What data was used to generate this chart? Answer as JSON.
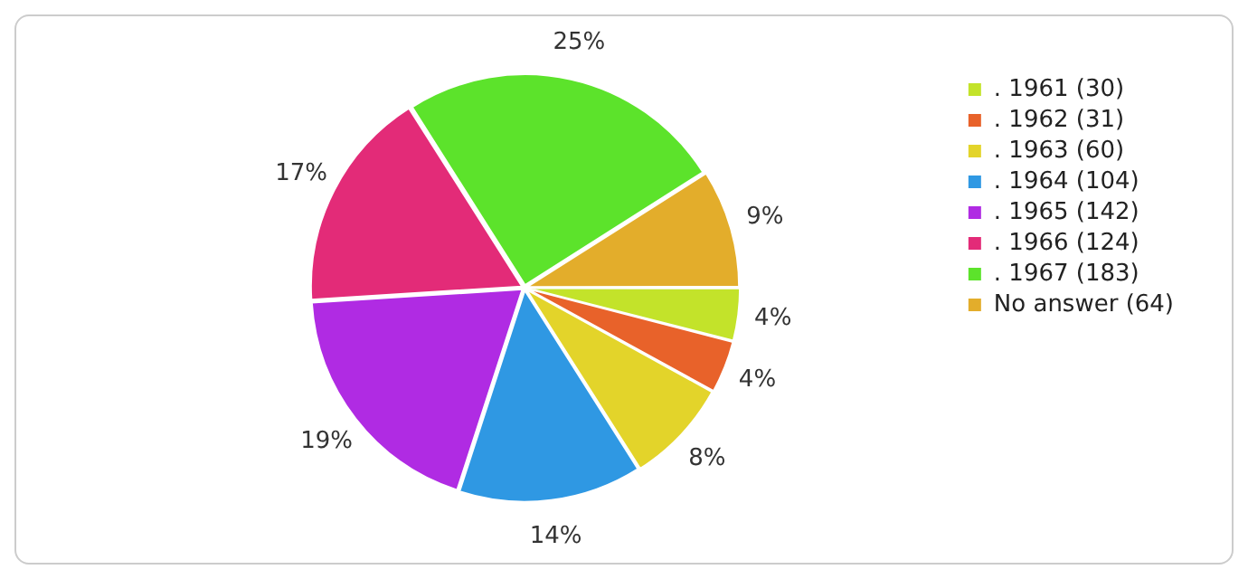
{
  "chart_data": {
    "type": "pie",
    "categories": [
      ". 1961 (30)",
      ". 1962 (31)",
      ". 1963 (60)",
      ". 1964 (104)",
      ". 1965 (142)",
      ". 1966 (124)",
      ". 1967 (183)",
      "No answer (64)"
    ],
    "values": [
      4,
      4,
      8,
      14,
      19,
      17,
      25,
      9
    ],
    "colors": [
      "#c3e32a",
      "#e8622a",
      "#e3d42a",
      "#2f98e3",
      "#b02be3",
      "#e32b78",
      "#5ce32b",
      "#e3ad2b"
    ],
    "value_labels": [
      "4%",
      "4%",
      "8%",
      "14%",
      "19%",
      "17%",
      "25%",
      "9%"
    ],
    "legend": "top right"
  }
}
